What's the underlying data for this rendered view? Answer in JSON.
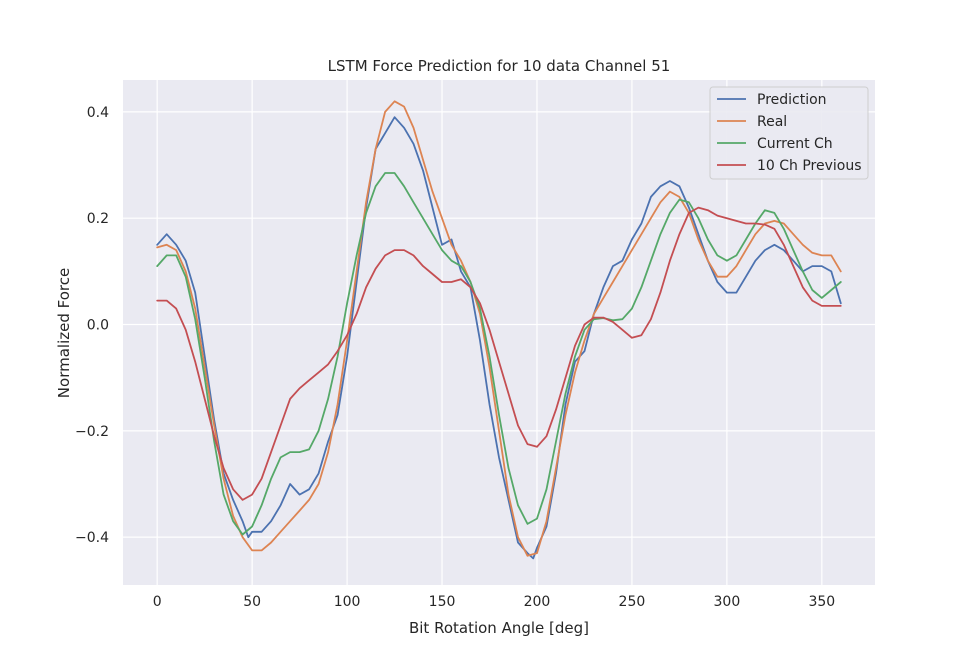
{
  "chart_data": {
    "type": "line",
    "title": "LSTM Force Prediction for 10 data Channel 51",
    "xlabel": "Bit Rotation Angle [deg]",
    "ylabel": "Normalized Force",
    "xlim": [
      -18,
      378
    ],
    "ylim": [
      -0.49,
      0.46
    ],
    "xticks": [
      0,
      50,
      100,
      150,
      200,
      250,
      300,
      350
    ],
    "yticks": [
      -0.4,
      -0.2,
      0.0,
      0.2,
      0.4
    ],
    "xtick_labels": [
      "0",
      "50",
      "100",
      "150",
      "200",
      "250",
      "300",
      "350"
    ],
    "ytick_labels": [
      "−0.4",
      "−0.2",
      "0.0",
      "0.2",
      "0.4"
    ],
    "grid": true,
    "background": "#eaeaf2",
    "legend_position": "top-right",
    "series": [
      {
        "name": "Prediction",
        "color": "#4c72b0",
        "x": [
          0,
          5,
          10,
          15,
          20,
          25,
          30,
          35,
          40,
          45,
          48,
          50,
          55,
          60,
          65,
          70,
          75,
          80,
          85,
          90,
          95,
          100,
          105,
          110,
          115,
          120,
          125,
          130,
          135,
          140,
          145,
          150,
          155,
          160,
          165,
          170,
          175,
          180,
          185,
          190,
          195,
          198,
          200,
          205,
          210,
          215,
          220,
          225,
          230,
          235,
          240,
          245,
          250,
          255,
          260,
          265,
          270,
          275,
          280,
          285,
          290,
          295,
          300,
          305,
          310,
          315,
          320,
          325,
          330,
          335,
          340,
          345,
          350,
          355,
          360
        ],
        "values": [
          0.15,
          0.17,
          0.15,
          0.12,
          0.06,
          -0.06,
          -0.18,
          -0.28,
          -0.33,
          -0.37,
          -0.4,
          -0.39,
          -0.39,
          -0.37,
          -0.34,
          -0.3,
          -0.32,
          -0.31,
          -0.28,
          -0.22,
          -0.17,
          -0.06,
          0.08,
          0.22,
          0.33,
          0.36,
          0.39,
          0.37,
          0.34,
          0.29,
          0.22,
          0.15,
          0.16,
          0.1,
          0.07,
          -0.03,
          -0.15,
          -0.25,
          -0.33,
          -0.41,
          -0.43,
          -0.44,
          -0.42,
          -0.38,
          -0.28,
          -0.15,
          -0.07,
          -0.05,
          0.02,
          0.07,
          0.11,
          0.12,
          0.16,
          0.19,
          0.24,
          0.26,
          0.27,
          0.26,
          0.22,
          0.17,
          0.12,
          0.08,
          0.06,
          0.06,
          0.09,
          0.12,
          0.14,
          0.15,
          0.14,
          0.12,
          0.1,
          0.11,
          0.11,
          0.1,
          0.04
        ]
      },
      {
        "name": "Real",
        "color": "#dd8452",
        "x": [
          0,
          5,
          10,
          15,
          20,
          25,
          30,
          35,
          40,
          45,
          50,
          55,
          60,
          65,
          70,
          75,
          80,
          85,
          90,
          95,
          100,
          105,
          110,
          115,
          120,
          125,
          130,
          135,
          140,
          145,
          150,
          155,
          160,
          165,
          170,
          175,
          180,
          185,
          190,
          195,
          200,
          205,
          210,
          215,
          220,
          225,
          230,
          235,
          240,
          245,
          250,
          255,
          260,
          265,
          270,
          275,
          280,
          285,
          290,
          295,
          300,
          305,
          310,
          315,
          320,
          325,
          330,
          335,
          340,
          345,
          350,
          355,
          360
        ],
        "values": [
          0.145,
          0.15,
          0.14,
          0.1,
          0.03,
          -0.08,
          -0.19,
          -0.29,
          -0.36,
          -0.4,
          -0.425,
          -0.425,
          -0.41,
          -0.39,
          -0.37,
          -0.35,
          -0.33,
          -0.3,
          -0.24,
          -0.15,
          -0.03,
          0.1,
          0.23,
          0.33,
          0.4,
          0.42,
          0.41,
          0.37,
          0.31,
          0.25,
          0.2,
          0.15,
          0.12,
          0.08,
          0.02,
          -0.08,
          -0.2,
          -0.32,
          -0.4,
          -0.435,
          -0.43,
          -0.37,
          -0.27,
          -0.17,
          -0.09,
          -0.03,
          0.02,
          0.05,
          0.08,
          0.11,
          0.14,
          0.17,
          0.2,
          0.23,
          0.25,
          0.24,
          0.21,
          0.16,
          0.12,
          0.09,
          0.09,
          0.11,
          0.14,
          0.17,
          0.19,
          0.195,
          0.19,
          0.17,
          0.15,
          0.135,
          0.13,
          0.13,
          0.1
        ]
      },
      {
        "name": "Current Ch",
        "color": "#55a868",
        "x": [
          0,
          5,
          10,
          15,
          20,
          25,
          30,
          35,
          40,
          45,
          50,
          55,
          60,
          65,
          70,
          75,
          80,
          85,
          90,
          95,
          100,
          105,
          110,
          115,
          120,
          125,
          130,
          135,
          140,
          145,
          150,
          155,
          160,
          165,
          170,
          175,
          180,
          185,
          190,
          195,
          200,
          205,
          210,
          215,
          220,
          225,
          230,
          235,
          240,
          245,
          250,
          255,
          260,
          265,
          270,
          275,
          280,
          285,
          290,
          295,
          300,
          305,
          310,
          315,
          320,
          325,
          330,
          335,
          340,
          345,
          350,
          355,
          360
        ],
        "values": [
          0.11,
          0.13,
          0.13,
          0.09,
          0.01,
          -0.1,
          -0.22,
          -0.32,
          -0.37,
          -0.395,
          -0.38,
          -0.34,
          -0.29,
          -0.25,
          -0.24,
          -0.24,
          -0.235,
          -0.2,
          -0.14,
          -0.06,
          0.04,
          0.13,
          0.21,
          0.26,
          0.285,
          0.285,
          0.26,
          0.23,
          0.2,
          0.17,
          0.14,
          0.12,
          0.11,
          0.08,
          0.03,
          -0.06,
          -0.17,
          -0.27,
          -0.34,
          -0.375,
          -0.365,
          -0.31,
          -0.22,
          -0.13,
          -0.06,
          -0.01,
          0.01,
          0.012,
          0.008,
          0.01,
          0.03,
          0.07,
          0.12,
          0.17,
          0.21,
          0.235,
          0.23,
          0.2,
          0.16,
          0.13,
          0.12,
          0.13,
          0.16,
          0.19,
          0.215,
          0.21,
          0.18,
          0.14,
          0.1,
          0.065,
          0.05,
          0.065,
          0.08
        ]
      },
      {
        "name": "10 Ch Previous",
        "color": "#c44e52",
        "x": [
          0,
          5,
          10,
          15,
          20,
          25,
          30,
          35,
          40,
          45,
          50,
          55,
          60,
          65,
          70,
          75,
          80,
          85,
          90,
          95,
          100,
          105,
          110,
          115,
          120,
          125,
          130,
          135,
          140,
          145,
          150,
          155,
          160,
          165,
          170,
          175,
          180,
          185,
          190,
          195,
          200,
          205,
          210,
          215,
          220,
          225,
          230,
          235,
          240,
          245,
          250,
          255,
          260,
          265,
          270,
          275,
          280,
          285,
          290,
          295,
          300,
          305,
          310,
          315,
          320,
          325,
          330,
          335,
          340,
          345,
          350,
          355,
          360
        ],
        "values": [
          0.045,
          0.045,
          0.03,
          -0.01,
          -0.07,
          -0.14,
          -0.21,
          -0.27,
          -0.31,
          -0.33,
          -0.32,
          -0.29,
          -0.24,
          -0.19,
          -0.14,
          -0.12,
          -0.105,
          -0.09,
          -0.075,
          -0.05,
          -0.02,
          0.02,
          0.07,
          0.105,
          0.13,
          0.14,
          0.14,
          0.13,
          0.11,
          0.095,
          0.08,
          0.08,
          0.085,
          0.07,
          0.04,
          -0.01,
          -0.07,
          -0.13,
          -0.19,
          -0.225,
          -0.23,
          -0.21,
          -0.16,
          -0.1,
          -0.04,
          0.0,
          0.013,
          0.013,
          0.005,
          -0.01,
          -0.025,
          -0.02,
          0.01,
          0.06,
          0.12,
          0.17,
          0.21,
          0.22,
          0.215,
          0.205,
          0.2,
          0.195,
          0.19,
          0.19,
          0.188,
          0.18,
          0.15,
          0.11,
          0.07,
          0.045,
          0.035,
          0.035,
          0.035
        ]
      }
    ]
  }
}
